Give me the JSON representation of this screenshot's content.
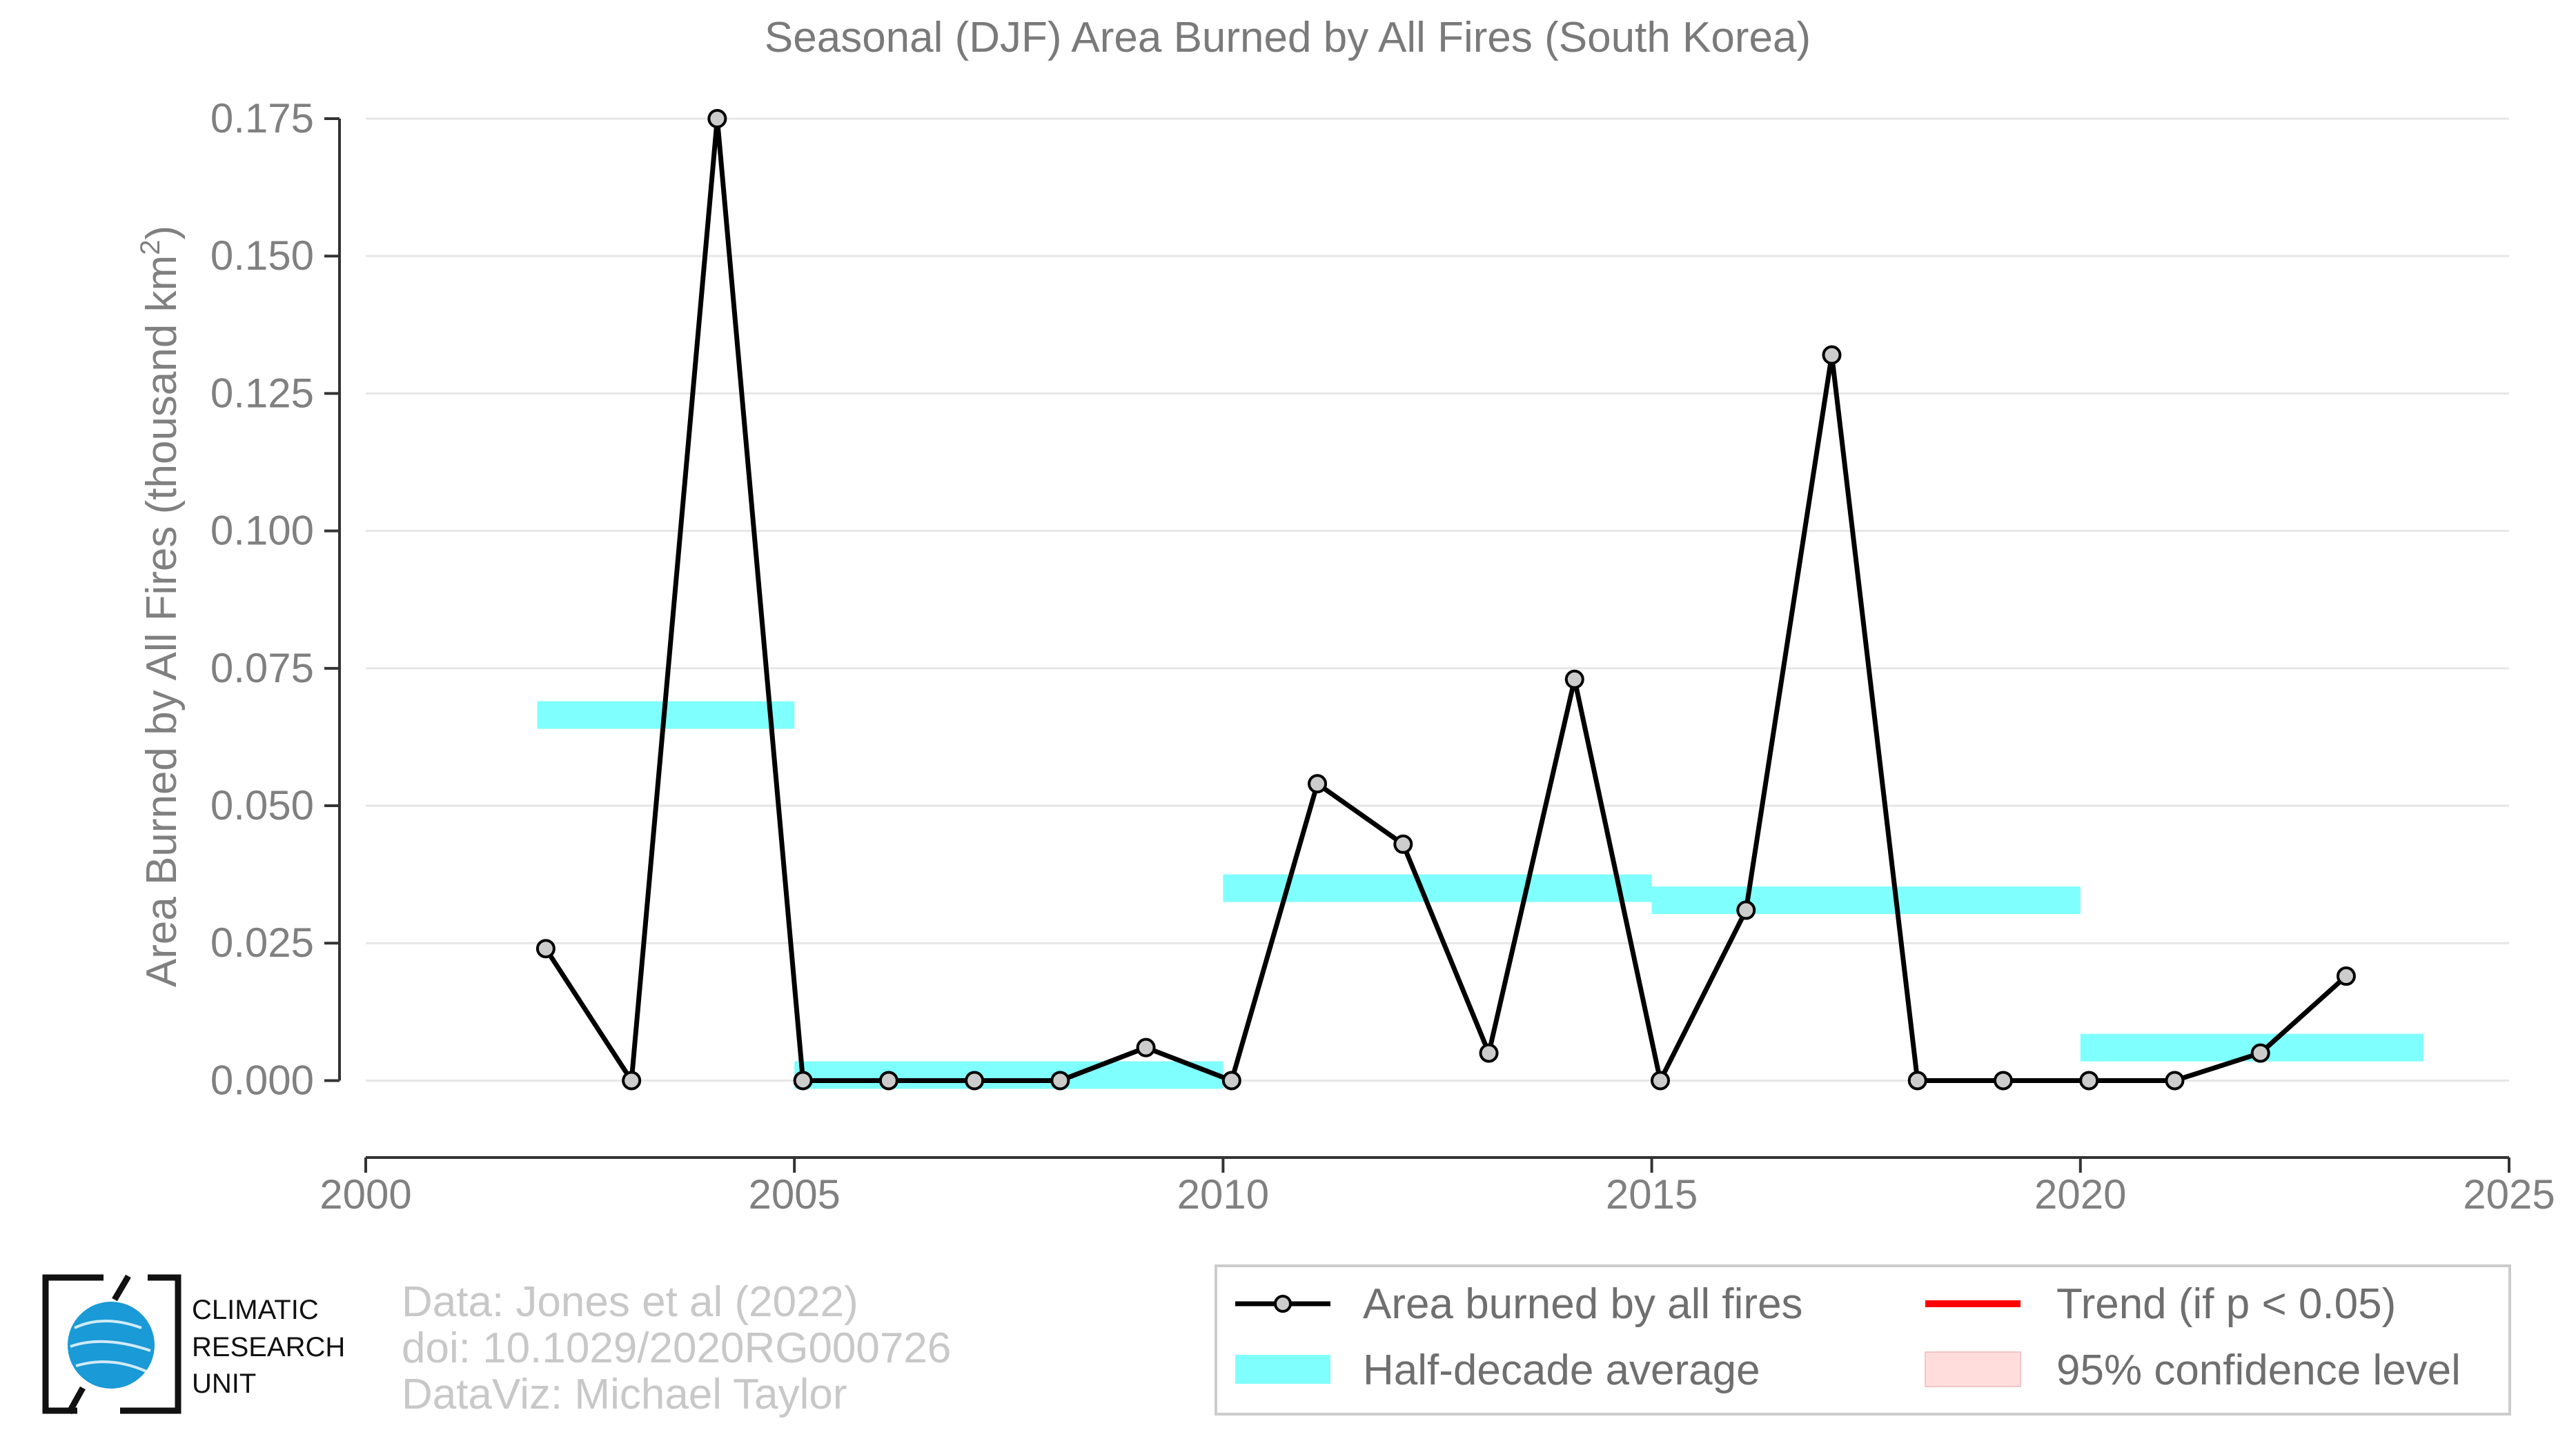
{
  "chart_data": {
    "type": "line",
    "title": "Seasonal (DJF) Area Burned by All Fires (South Korea)",
    "ylabel": "Area Burned by All Fires (thousand km",
    "ylabel_sup": "2",
    "ylabel_close": ")",
    "xlim": [
      2000,
      2025
    ],
    "ylim": [
      -0.014,
      0.175
    ],
    "x_ticks": [
      2000,
      2005,
      2010,
      2015,
      2020,
      2025
    ],
    "x_tick_labels": [
      "2000",
      "2005",
      "2010",
      "2015",
      "2020",
      "2025"
    ],
    "y_ticks": [
      0,
      0.025,
      0.05,
      0.075,
      0.1,
      0.125,
      0.15,
      0.175
    ],
    "y_tick_labels": [
      "0.000",
      "0.025",
      "0.050",
      "0.075",
      "0.100",
      "0.125",
      "0.150",
      "0.175"
    ],
    "grid": "horizontal",
    "series": [
      {
        "name": "Area burned by all fires",
        "color": "#000000",
        "marker_fill": "#cccccc",
        "x": [
          2002,
          2003,
          2004,
          2005,
          2006,
          2007,
          2008,
          2009,
          2010,
          2011,
          2012,
          2013,
          2014,
          2015,
          2016,
          2017,
          2018,
          2019,
          2020,
          2021,
          2022,
          2023
        ],
        "y": [
          0.024,
          0.0,
          0.175,
          0.0,
          0.0,
          0.0,
          0.0,
          0.006,
          0.0,
          0.054,
          0.043,
          0.005,
          0.073,
          0.0,
          0.031,
          0.132,
          0.0,
          0.0,
          0.0,
          0.0,
          0.005,
          0.019
        ]
      }
    ],
    "half_decade_average": {
      "name": "Half-decade average",
      "color": "#80ffff",
      "segments": [
        {
          "x_start": 2002,
          "x_end": 2005,
          "value": 0.0665
        },
        {
          "x_start": 2005,
          "x_end": 2010,
          "value": 0.001
        },
        {
          "x_start": 2010,
          "x_end": 2015,
          "value": 0.035
        },
        {
          "x_start": 2015,
          "x_end": 2020,
          "value": 0.0328
        },
        {
          "x_start": 2020,
          "x_end": 2024,
          "value": 0.006
        }
      ]
    },
    "legend": {
      "placement": "bottom-right",
      "entries": [
        {
          "key": "line",
          "label": "Area burned by all fires",
          "color": "#000000"
        },
        {
          "key": "trend",
          "label": "Trend (if p < 0.05)",
          "color": "#ff0000"
        },
        {
          "key": "halfdecade",
          "label": "Half-decade average",
          "color": "#80ffff"
        },
        {
          "key": "ci",
          "label": "95% confidence level",
          "color": "#ffdddd"
        }
      ]
    }
  },
  "credits": {
    "line1": "Data: Jones et al (2022)",
    "line2": "doi: 10.1029/2020RG000726",
    "line3": "DataViz: Michael Taylor"
  },
  "logo": {
    "line1": "CLIMATIC",
    "line2": "RESEARCH",
    "line3": "UNIT",
    "globe_color": "#1a9ad6"
  }
}
